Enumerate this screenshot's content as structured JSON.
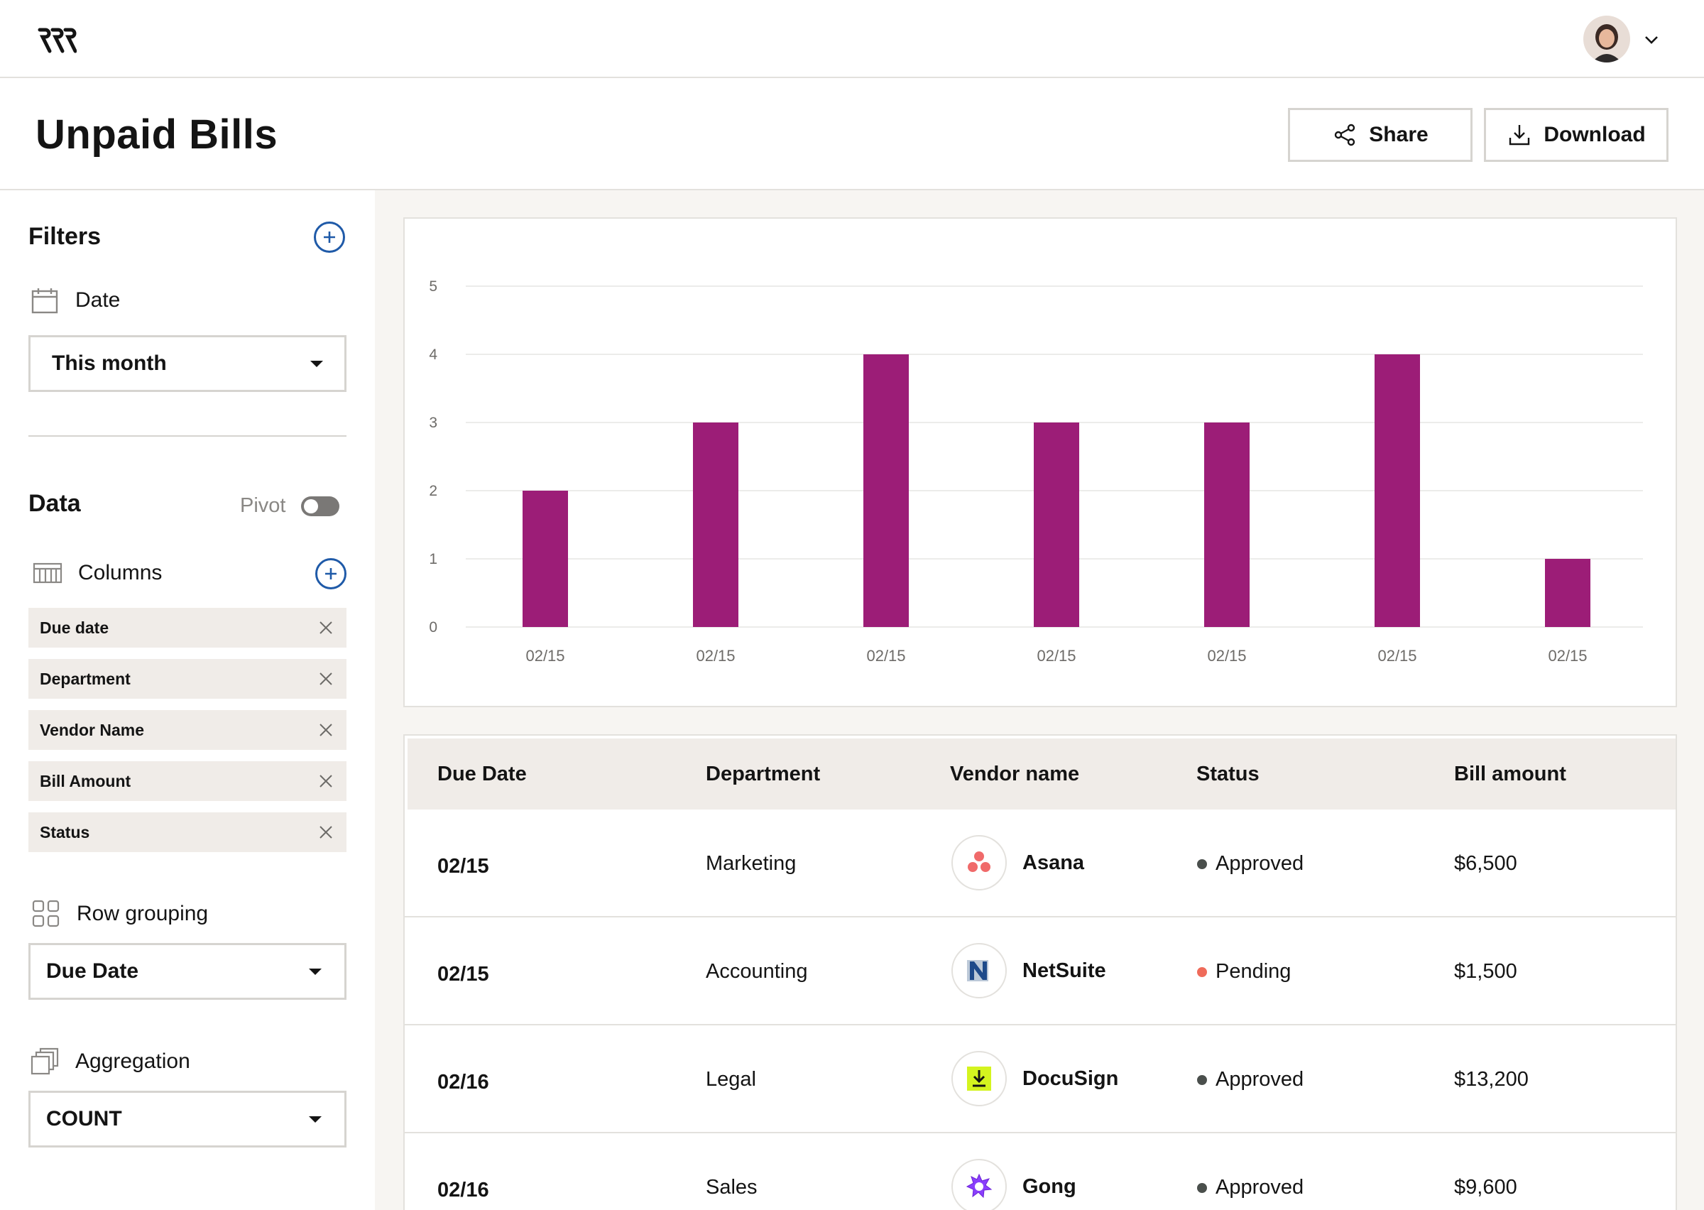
{
  "page": {
    "title": "Unpaid Bills"
  },
  "header": {
    "share_label": "Share",
    "download_label": "Download"
  },
  "filters": {
    "title": "Filters",
    "date_label": "Date",
    "date_value": "This month"
  },
  "data_section": {
    "title": "Data",
    "pivot_label": "Pivot",
    "pivot_on": false,
    "columns_label": "Columns",
    "columns": [
      "Due date",
      "Department",
      "Vendor Name",
      "Bill Amount",
      "Status"
    ],
    "row_grouping_label": "Row grouping",
    "row_grouping_value": "Due Date",
    "aggregation_label": "Aggregation",
    "aggregation_value": "COUNT"
  },
  "chart_data": {
    "type": "bar",
    "categories": [
      "02/15",
      "02/15",
      "02/15",
      "02/15",
      "02/15",
      "02/15",
      "02/15"
    ],
    "values": [
      2,
      3,
      4,
      3,
      3,
      4,
      1
    ],
    "ylim": [
      0,
      5
    ],
    "yticks": [
      "0",
      "1",
      "2",
      "3",
      "4",
      "5"
    ],
    "grid": true,
    "color": "#9c1d77"
  },
  "table": {
    "headers": [
      "Due Date",
      "Department",
      "Vendor name",
      "Status",
      "Bill amount"
    ],
    "rows": [
      {
        "date": "02/15",
        "department": "Marketing",
        "vendor": "Asana",
        "vendor_icon": "asana-icon",
        "status": "Approved",
        "status_color": "#4a4f4c",
        "amount": "$6,500"
      },
      {
        "date": "02/15",
        "department": "Accounting",
        "vendor": "NetSuite",
        "vendor_icon": "netsuite-icon",
        "status": "Pending",
        "status_color": "#ef6b5a",
        "amount": "$1,500"
      },
      {
        "date": "02/16",
        "department": "Legal",
        "vendor": "DocuSign",
        "vendor_icon": "docusign-icon",
        "status": "Approved",
        "status_color": "#4a4f4c",
        "amount": "$13,200"
      },
      {
        "date": "02/16",
        "department": "Sales",
        "vendor": "Gong",
        "vendor_icon": "gong-icon",
        "status": "Approved",
        "status_color": "#4a4f4c",
        "amount": "$9,600"
      }
    ]
  },
  "colors": {
    "accent": "#1f5aa8",
    "bar": "#9c1d77",
    "chip_bg": "#f0ece8",
    "main_bg": "#f7f5f2"
  }
}
